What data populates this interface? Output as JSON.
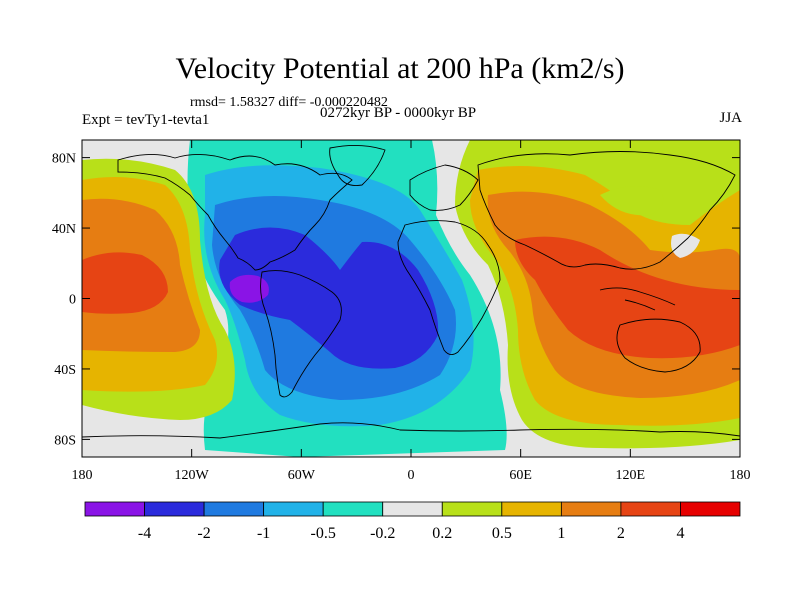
{
  "title": "Velocity Potential at 200 hPa (km2/s)",
  "stats_text": "rmsd= 1.58327 diff= -0.000220482",
  "experiment": "Expt = tevTy1-tevta1",
  "period": "0272kyr BP - 0000kyr BP",
  "season": "JJA",
  "map_data": {
    "type": "filled-contour-map",
    "projection": "cylindrical-equidistant",
    "lon_range": [
      -180,
      180
    ],
    "lat_range": [
      -90,
      90
    ],
    "lon_ticks": [
      {
        "value": -180,
        "label": "180"
      },
      {
        "value": -120,
        "label": "120W"
      },
      {
        "value": -60,
        "label": "60W"
      },
      {
        "value": 0,
        "label": "0"
      },
      {
        "value": 60,
        "label": "60E"
      },
      {
        "value": 120,
        "label": "120E"
      },
      {
        "value": 180,
        "label": "180"
      }
    ],
    "lat_ticks": [
      {
        "value": 80,
        "label": "80N"
      },
      {
        "value": 40,
        "label": "40N"
      },
      {
        "value": 0,
        "label": "0"
      },
      {
        "value": -40,
        "label": "40S"
      },
      {
        "value": -80,
        "label": "80S"
      }
    ],
    "colorbar": {
      "labels": [
        "-4",
        "-2",
        "-1",
        "-0.5",
        "-0.2",
        "0.2",
        "0.5",
        "1",
        "2",
        "4"
      ],
      "colors": [
        "#8a14e6",
        "#2b2bdc",
        "#1f7ae0",
        "#21b2e8",
        "#22e0c0",
        "#e6e6e6",
        "#b8e019",
        "#e6b400",
        "#e67d12",
        "#e64414",
        "#e60000"
      ]
    }
  }
}
